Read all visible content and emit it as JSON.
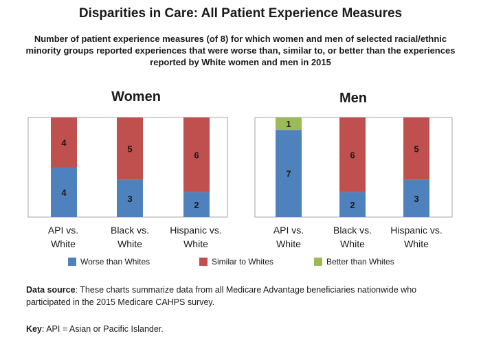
{
  "title": "Disparities in Care: All Patient Experience Measures",
  "subtitle": "Number of patient experience measures (of 8) for which women and men of selected racial/ethnic minority groups reported experiences that were worse than, similar to, or better than the experiences reported by White women and men in 2015",
  "legend": {
    "worse": "Worse than Whites",
    "similar": "Similar to Whites",
    "better": "Better than Whites"
  },
  "colors": {
    "worse": "#4f81bd",
    "similar": "#c0504d",
    "better": "#9bbb59"
  },
  "categories": [
    [
      "API vs.",
      "White"
    ],
    [
      "Black vs.",
      "White"
    ],
    [
      "Hispanic vs.",
      "White"
    ]
  ],
  "chart_data": [
    {
      "type": "bar",
      "stacked": true,
      "title": "Women",
      "categories": [
        "API vs. White",
        "Black vs. White",
        "Hispanic vs. White"
      ],
      "series": [
        {
          "name": "Worse than Whites",
          "values": [
            4,
            3,
            2
          ]
        },
        {
          "name": "Similar to Whites",
          "values": [
            4,
            5,
            6
          ]
        },
        {
          "name": "Better than Whites",
          "values": [
            0,
            0,
            0
          ]
        }
      ],
      "ylim": [
        0,
        8
      ],
      "legend": "bottom"
    },
    {
      "type": "bar",
      "stacked": true,
      "title": "Men",
      "categories": [
        "API vs. White",
        "Black vs. White",
        "Hispanic vs. White"
      ],
      "series": [
        {
          "name": "Worse than Whites",
          "values": [
            7,
            2,
            3
          ]
        },
        {
          "name": "Similar to Whites",
          "values": [
            0,
            6,
            5
          ]
        },
        {
          "name": "Better than Whites",
          "values": [
            1,
            0,
            0
          ]
        }
      ],
      "ylim": [
        0,
        8
      ],
      "legend": "bottom"
    }
  ],
  "source": {
    "label": "Data source",
    "text": ": These charts summarize data from all Medicare Advantage beneficiaries nationwide who participated in the 2015 Medicare CAHPS survey."
  },
  "key": {
    "label": "Key",
    "text": ": API = Asian or Pacific Islander."
  }
}
